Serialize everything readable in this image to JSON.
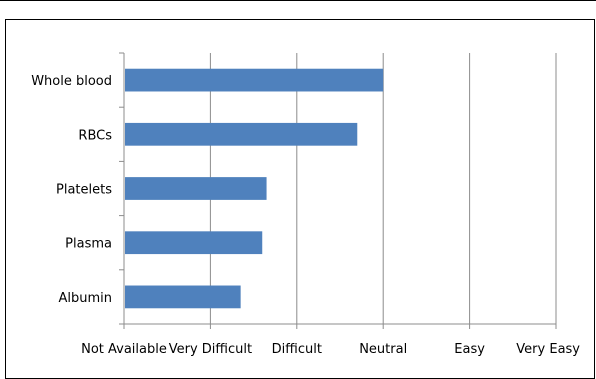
{
  "chart_data": {
    "type": "bar",
    "orientation": "horizontal",
    "categories": [
      "Whole blood",
      "RBCs",
      "Platelets",
      "Plasma",
      "Albumin"
    ],
    "values": [
      3.0,
      2.7,
      1.65,
      1.6,
      1.35
    ],
    "xlim": [
      0,
      5
    ],
    "x_tick_labels": [
      "Not Available",
      "Very Difficult",
      "Difficult",
      "Neutral",
      "Easy",
      "Very Easy"
    ],
    "grid": "vertical",
    "legend": "none",
    "bar_color": "#4f81bd",
    "title": "",
    "xlabel": "",
    "ylabel": ""
  }
}
